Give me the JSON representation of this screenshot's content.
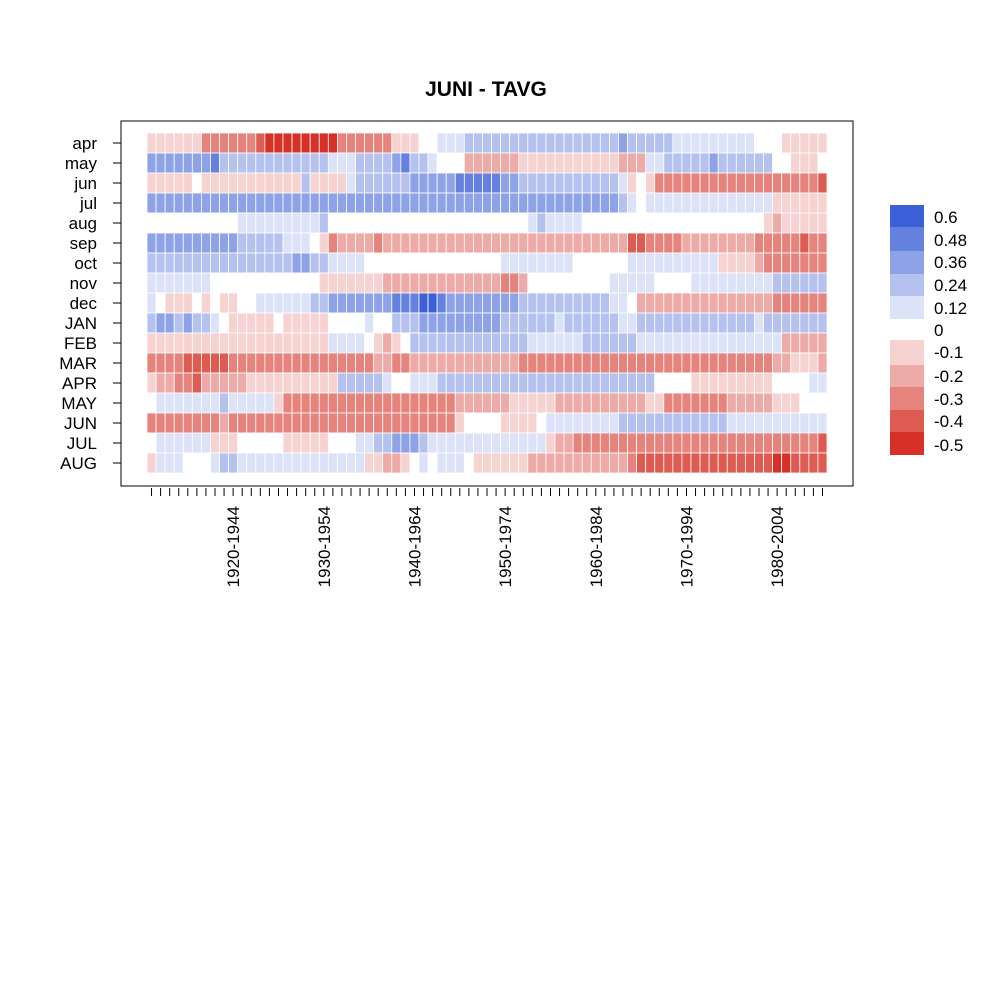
{
  "chart_data": {
    "type": "heatmap",
    "title": "JUNI - TAVG",
    "rows": [
      "apr",
      "may",
      "jun",
      "jul",
      "aug",
      "sep",
      "oct",
      "nov",
      "dec",
      "JAN",
      "FEB",
      "MAR",
      "APR",
      "MAY",
      "JUN",
      "JUL",
      "AUG"
    ],
    "x_tick_labels": [
      "1920-1944",
      "1930-1954",
      "1940-1964",
      "1950-1974",
      "1960-1984",
      "1970-1994",
      "1980-2004"
    ],
    "x_tick_label_column_index": [
      9,
      19,
      29,
      39,
      49,
      59,
      69
    ],
    "n_columns": 75,
    "color_scale": {
      "labels": [
        "0.6",
        "0.48",
        "0.36",
        "0.24",
        "0.12",
        "0",
        "-0.1",
        "-0.2",
        "-0.3",
        "-0.4",
        "-0.5"
      ],
      "colors": [
        "#3b5fd6",
        "#6581df",
        "#8ea2e7",
        "#b5c2f0",
        "#dce2f8",
        "#ffffff",
        "#f6d2d0",
        "#eeaaa6",
        "#e6837c",
        "#de5b52",
        "#d73027"
      ]
    },
    "values_description": "Each cell = correlation class (-0.5..0.6) for 25-year window ending at column index; values below in rows matching rows[] order.",
    "values": [
      [
        -0.1,
        -0.1,
        -0.1,
        -0.1,
        -0.1,
        -0.1,
        -0.3,
        -0.3,
        -0.3,
        -0.3,
        -0.3,
        -0.3,
        -0.4,
        -0.5,
        -0.5,
        -0.5,
        -0.5,
        -0.5,
        -0.5,
        -0.5,
        -0.5,
        -0.3,
        -0.3,
        -0.3,
        -0.3,
        -0.3,
        -0.3,
        -0.1,
        -0.1,
        -0.1,
        0,
        0,
        0.12,
        0.12,
        0.12,
        0.24,
        0.24,
        0.24,
        0.24,
        0.24,
        0.24,
        0.24,
        0.24,
        0.24,
        0.24,
        0.24,
        0.24,
        0.24,
        0.24,
        0.24,
        0.24,
        0.24,
        0.36,
        0.24,
        0.24,
        0.24,
        0.24,
        0.24,
        0.12,
        0.12,
        0.12,
        0.12,
        0.12,
        0.12,
        0.12,
        0.12,
        0.12,
        0,
        0,
        0,
        -0.1,
        -0.1,
        -0.1,
        -0.1,
        -0.1
      ],
      [
        0.36,
        0.36,
        0.36,
        0.36,
        0.36,
        0.36,
        0.36,
        0.48,
        0.24,
        0.24,
        0.24,
        0.24,
        0.24,
        0.24,
        0.24,
        0.24,
        0.24,
        0.24,
        0.24,
        0.24,
        0.12,
        0.12,
        0.12,
        0.24,
        0.24,
        0.24,
        0.24,
        0.36,
        0.48,
        0.24,
        0.24,
        0.12,
        0,
        0,
        0,
        -0.2,
        -0.2,
        -0.2,
        -0.2,
        -0.2,
        -0.2,
        -0.1,
        -0.1,
        -0.1,
        -0.1,
        -0.1,
        -0.1,
        -0.1,
        -0.1,
        -0.1,
        -0.1,
        -0.1,
        -0.2,
        -0.2,
        -0.2,
        0.12,
        0.12,
        0.24,
        0.24,
        0.24,
        0.24,
        0.24,
        0.36,
        0.24,
        0.24,
        0.24,
        0.24,
        0.24,
        0.24,
        0,
        0,
        -0.1,
        -0.1,
        -0.1,
        0
      ],
      [
        -0.1,
        -0.1,
        -0.1,
        -0.1,
        -0.1,
        0,
        -0.1,
        -0.1,
        -0.1,
        -0.1,
        -0.1,
        -0.1,
        -0.1,
        -0.1,
        -0.1,
        -0.1,
        -0.1,
        0.24,
        -0.1,
        -0.1,
        -0.1,
        -0.1,
        0.12,
        0.24,
        0.24,
        0.24,
        0.24,
        0.24,
        0.24,
        0.36,
        0.36,
        0.36,
        0.36,
        0.36,
        0.48,
        0.48,
        0.48,
        0.48,
        0.48,
        0.36,
        0.36,
        0.24,
        0.24,
        0.24,
        0.24,
        0.24,
        0.24,
        0.24,
        0.24,
        0.24,
        0.24,
        0.24,
        0.12,
        -0.1,
        0,
        -0.1,
        -0.3,
        -0.3,
        -0.3,
        -0.3,
        -0.3,
        -0.3,
        -0.3,
        -0.3,
        -0.3,
        -0.3,
        -0.3,
        -0.3,
        -0.3,
        -0.3,
        -0.3,
        -0.3,
        -0.3,
        -0.3,
        -0.4
      ],
      [
        0.36,
        0.36,
        0.36,
        0.36,
        0.36,
        0.36,
        0.36,
        0.36,
        0.36,
        0.36,
        0.36,
        0.36,
        0.36,
        0.36,
        0.36,
        0.36,
        0.36,
        0.36,
        0.36,
        0.36,
        0.36,
        0.36,
        0.36,
        0.36,
        0.36,
        0.36,
        0.36,
        0.36,
        0.36,
        0.36,
        0.36,
        0.36,
        0.36,
        0.36,
        0.36,
        0.36,
        0.36,
        0.36,
        0.36,
        0.36,
        0.36,
        0.36,
        0.36,
        0.36,
        0.36,
        0.36,
        0.36,
        0.36,
        0.36,
        0.36,
        0.36,
        0.36,
        0.24,
        0.12,
        0,
        0.12,
        0.12,
        0.12,
        0.12,
        0.12,
        0.12,
        0.12,
        0.12,
        0.12,
        0.12,
        0.12,
        0.12,
        0.12,
        0.12,
        -0.1,
        -0.1,
        -0.1,
        -0.1,
        -0.1,
        -0.1
      ],
      [
        0,
        0,
        0,
        0,
        0,
        0,
        0,
        0,
        0,
        0,
        0.12,
        0.12,
        0.12,
        0.12,
        0.12,
        0.12,
        0.12,
        0.12,
        0.12,
        0.24,
        0,
        0,
        0,
        0,
        0,
        0,
        0,
        0,
        0,
        0,
        0,
        0,
        0,
        0,
        0,
        0,
        0,
        0,
        0,
        0,
        0,
        0,
        0.12,
        0.24,
        0.12,
        0.12,
        0.12,
        0.12,
        0,
        0,
        0,
        0,
        0,
        0,
        0,
        0,
        0,
        0,
        0,
        0,
        0,
        0,
        0,
        0,
        0,
        0,
        0,
        0,
        -0.1,
        -0.2,
        -0.1,
        -0.1,
        -0.1,
        -0.1,
        -0.1
      ],
      [
        0.36,
        0.36,
        0.36,
        0.36,
        0.36,
        0.36,
        0.36,
        0.36,
        0.36,
        0.36,
        0.24,
        0.24,
        0.24,
        0.24,
        0.24,
        0.12,
        0.12,
        0.12,
        0,
        -0.1,
        -0.3,
        -0.2,
        -0.2,
        -0.2,
        -0.2,
        -0.3,
        -0.2,
        -0.2,
        -0.2,
        -0.2,
        -0.2,
        -0.2,
        -0.2,
        -0.2,
        -0.2,
        -0.2,
        -0.2,
        -0.2,
        -0.2,
        -0.2,
        -0.2,
        -0.2,
        -0.2,
        -0.2,
        -0.2,
        -0.2,
        -0.2,
        -0.2,
        -0.2,
        -0.2,
        -0.2,
        -0.2,
        -0.2,
        -0.4,
        -0.4,
        -0.3,
        -0.3,
        -0.3,
        -0.3,
        -0.2,
        -0.2,
        -0.2,
        -0.2,
        -0.2,
        -0.2,
        -0.2,
        -0.2,
        -0.3,
        -0.3,
        -0.3,
        -0.3,
        -0.3,
        -0.4,
        -0.3,
        -0.3
      ],
      [
        0.24,
        0.24,
        0.24,
        0.24,
        0.24,
        0.24,
        0.24,
        0.24,
        0.24,
        0.24,
        0.24,
        0.24,
        0.24,
        0.24,
        0.24,
        0.24,
        0.36,
        0.36,
        0.24,
        0.24,
        0.12,
        0.12,
        0.12,
        0.12,
        0,
        0,
        0,
        0,
        0,
        0,
        0,
        0,
        0,
        0,
        0,
        0,
        0,
        0,
        0,
        0.12,
        0.12,
        0.12,
        0.12,
        0.12,
        0.12,
        0.12,
        0.12,
        0,
        0,
        0,
        0,
        0,
        0,
        0.12,
        0.12,
        0.12,
        0.12,
        0.12,
        0.12,
        0.12,
        0.12,
        0.12,
        0.12,
        -0.1,
        -0.1,
        -0.1,
        -0.1,
        -0.2,
        -0.3,
        -0.3,
        -0.3,
        -0.3,
        -0.3,
        -0.3,
        -0.3
      ],
      [
        0.12,
        0.12,
        0.12,
        0.12,
        0.12,
        0.12,
        0.12,
        0,
        0,
        0,
        0,
        0,
        0,
        0,
        0,
        0,
        0,
        0,
        0,
        -0.1,
        -0.1,
        -0.1,
        -0.1,
        -0.1,
        -0.1,
        -0.1,
        -0.2,
        -0.2,
        -0.2,
        -0.2,
        -0.2,
        -0.2,
        -0.2,
        -0.2,
        -0.2,
        -0.2,
        -0.2,
        -0.2,
        -0.2,
        -0.3,
        -0.3,
        -0.2,
        0,
        0,
        0,
        0,
        0,
        0,
        0,
        0,
        0,
        0.12,
        0.12,
        0.12,
        0.12,
        0.12,
        0,
        0,
        0,
        0,
        0.12,
        0.12,
        0.12,
        0.12,
        0.12,
        0.12,
        0.12,
        0.12,
        0.12,
        0.24,
        0.24,
        0.24,
        0.24,
        0.24,
        0.24
      ],
      [
        0.12,
        0,
        -0.1,
        -0.1,
        -0.1,
        0,
        -0.1,
        0,
        -0.1,
        -0.1,
        0,
        0,
        0.12,
        0.12,
        0.12,
        0.12,
        0.12,
        0.12,
        0.24,
        0.24,
        0.36,
        0.36,
        0.36,
        0.36,
        0.36,
        0.36,
        0.36,
        0.48,
        0.48,
        0.48,
        0.6,
        0.6,
        0.48,
        0.36,
        0.36,
        0.36,
        0.36,
        0.36,
        0.36,
        0.36,
        0.36,
        0.24,
        0.24,
        0.24,
        0.24,
        0.24,
        0.24,
        0.24,
        0.24,
        0.24,
        0.24,
        0.12,
        0.12,
        0,
        -0.2,
        -0.2,
        -0.2,
        -0.2,
        -0.2,
        -0.2,
        -0.2,
        -0.2,
        -0.2,
        -0.2,
        -0.2,
        -0.2,
        -0.2,
        -0.2,
        -0.2,
        -0.3,
        -0.3,
        -0.3,
        -0.3,
        -0.3,
        -0.3
      ],
      [
        0.24,
        0.36,
        0.36,
        0.24,
        0.36,
        0.24,
        0.24,
        0.12,
        0,
        -0.1,
        -0.1,
        -0.1,
        -0.1,
        -0.1,
        0,
        -0.1,
        -0.1,
        -0.1,
        -0.1,
        -0.1,
        0,
        0,
        0,
        0,
        0.12,
        0,
        0,
        0.24,
        0.24,
        0.24,
        0.36,
        0.36,
        0.36,
        0.36,
        0.36,
        0.36,
        0.36,
        0.36,
        0.36,
        0.24,
        0.24,
        0.24,
        0.24,
        0.24,
        0.24,
        0.12,
        0.24,
        0.24,
        0.24,
        0.24,
        0.24,
        0.24,
        0.12,
        0.12,
        0.24,
        0.24,
        0.24,
        0.24,
        0.24,
        0.24,
        0.24,
        0.24,
        0.24,
        0.24,
        0.24,
        0.24,
        0.24,
        0.12,
        0.24,
        0.24,
        0.24,
        0.24,
        0.24,
        0.24,
        0.24
      ],
      [
        -0.1,
        -0.1,
        -0.1,
        -0.1,
        -0.1,
        -0.1,
        -0.1,
        -0.1,
        -0.1,
        -0.1,
        -0.1,
        -0.1,
        -0.1,
        -0.1,
        -0.1,
        -0.1,
        -0.1,
        -0.1,
        -0.1,
        -0.1,
        0.12,
        0.12,
        0.12,
        0.12,
        0,
        -0.1,
        -0.2,
        -0.1,
        0,
        0.24,
        0.24,
        0.24,
        0.24,
        0.24,
        0.24,
        0.24,
        0.24,
        0.24,
        0.24,
        0.24,
        0.24,
        0.24,
        0.12,
        0.12,
        0.12,
        0.12,
        0.12,
        0.12,
        0.24,
        0.24,
        0.24,
        0.24,
        0.24,
        0.24,
        0.12,
        0.12,
        0.12,
        0.12,
        0.12,
        0.12,
        0.12,
        0.12,
        0.12,
        0.12,
        0.12,
        0.12,
        0.12,
        0.12,
        0.12,
        0.12,
        -0.2,
        -0.2,
        -0.2,
        -0.2,
        -0.2
      ],
      [
        -0.3,
        -0.3,
        -0.3,
        -0.3,
        -0.4,
        -0.4,
        -0.4,
        -0.4,
        -0.4,
        -0.3,
        -0.3,
        -0.3,
        -0.3,
        -0.3,
        -0.3,
        -0.3,
        -0.3,
        -0.3,
        -0.3,
        -0.3,
        -0.3,
        -0.3,
        -0.3,
        -0.3,
        -0.3,
        -0.2,
        -0.2,
        -0.3,
        -0.3,
        -0.2,
        -0.2,
        -0.2,
        -0.2,
        -0.2,
        -0.2,
        -0.2,
        -0.2,
        -0.2,
        -0.2,
        -0.2,
        -0.2,
        -0.3,
        -0.3,
        -0.3,
        -0.3,
        -0.3,
        -0.3,
        -0.3,
        -0.3,
        -0.3,
        -0.3,
        -0.3,
        -0.3,
        -0.3,
        -0.3,
        -0.3,
        -0.3,
        -0.3,
        -0.3,
        -0.3,
        -0.3,
        -0.3,
        -0.3,
        -0.3,
        -0.3,
        -0.3,
        -0.3,
        -0.3,
        -0.3,
        -0.2,
        -0.2,
        -0.1,
        -0.1,
        -0.1,
        -0.2
      ],
      [
        -0.1,
        -0.2,
        -0.2,
        -0.3,
        -0.3,
        -0.4,
        -0.2,
        -0.2,
        -0.2,
        -0.2,
        -0.2,
        -0.1,
        -0.1,
        -0.1,
        -0.1,
        -0.1,
        -0.1,
        -0.1,
        -0.1,
        -0.1,
        -0.1,
        0.24,
        0.24,
        0.24,
        0.24,
        0.24,
        0.12,
        0,
        0,
        0.12,
        0.12,
        0.12,
        0.24,
        0.24,
        0.24,
        0.24,
        0.24,
        0.24,
        0.24,
        0.24,
        0.24,
        0.24,
        0.24,
        0.24,
        0.24,
        0.24,
        0.24,
        0.24,
        0.24,
        0.24,
        0.24,
        0.24,
        0.24,
        0.24,
        0.24,
        0.24,
        0,
        0,
        0,
        0,
        -0.1,
        -0.1,
        -0.1,
        -0.1,
        -0.1,
        -0.1,
        -0.1,
        -0.1,
        -0.1,
        0,
        0,
        0,
        0,
        0.12,
        0.12
      ],
      [
        0,
        0.12,
        0.12,
        0.12,
        0.12,
        0.12,
        0.12,
        0.12,
        0.24,
        0.12,
        0.12,
        0.12,
        0.12,
        0.12,
        -0.1,
        -0.3,
        -0.3,
        -0.3,
        -0.3,
        -0.3,
        -0.3,
        -0.3,
        -0.3,
        -0.3,
        -0.3,
        -0.3,
        -0.3,
        -0.3,
        -0.3,
        -0.3,
        -0.3,
        -0.3,
        -0.3,
        -0.3,
        -0.2,
        -0.2,
        -0.2,
        -0.2,
        -0.2,
        -0.2,
        -0.1,
        -0.1,
        -0.1,
        -0.1,
        -0.1,
        -0.2,
        -0.2,
        -0.2,
        -0.2,
        -0.2,
        -0.2,
        -0.2,
        -0.2,
        -0.2,
        -0.2,
        -0.1,
        -0.1,
        -0.3,
        -0.3,
        -0.3,
        -0.3,
        -0.3,
        -0.3,
        -0.3,
        -0.2,
        -0.2,
        -0.2,
        -0.2,
        -0.2,
        -0.1,
        -0.1,
        -0.1,
        0,
        0,
        0
      ],
      [
        -0.3,
        -0.3,
        -0.3,
        -0.3,
        -0.3,
        -0.3,
        -0.3,
        -0.3,
        -0.2,
        -0.3,
        -0.3,
        -0.3,
        -0.3,
        -0.3,
        -0.3,
        -0.3,
        -0.3,
        -0.3,
        -0.3,
        -0.3,
        -0.3,
        -0.3,
        -0.3,
        -0.3,
        -0.3,
        -0.3,
        -0.3,
        -0.3,
        -0.3,
        -0.3,
        -0.3,
        -0.3,
        -0.3,
        -0.3,
        -0.1,
        0,
        0,
        0,
        0,
        -0.1,
        -0.1,
        -0.1,
        -0.1,
        0,
        0.12,
        0.12,
        0.12,
        0.12,
        0.12,
        0.12,
        0.12,
        0.12,
        0.24,
        0.24,
        0.24,
        0.24,
        0.24,
        0.24,
        0.24,
        0.24,
        0.24,
        0.24,
        0.24,
        0.24,
        0.12,
        0.12,
        0.12,
        0.12,
        0.12,
        0.12,
        0.12,
        0.12,
        0.12,
        0.12,
        0.12
      ],
      [
        0,
        0.12,
        0.12,
        0.12,
        0.12,
        0.12,
        0.12,
        -0.1,
        -0.1,
        -0.1,
        0,
        0,
        0,
        0,
        0,
        -0.1,
        -0.1,
        -0.1,
        -0.1,
        -0.1,
        0,
        0,
        0,
        0.12,
        0.12,
        0.24,
        0.24,
        0.36,
        0.36,
        0.36,
        0.24,
        0.12,
        0.12,
        0.12,
        0.12,
        0.12,
        0.12,
        0.12,
        0.12,
        0.12,
        0.12,
        0.12,
        0.12,
        0.12,
        -0.1,
        -0.2,
        -0.2,
        -0.3,
        -0.3,
        -0.3,
        -0.3,
        -0.3,
        -0.3,
        -0.3,
        -0.3,
        -0.3,
        -0.3,
        -0.3,
        -0.3,
        -0.3,
        -0.3,
        -0.3,
        -0.3,
        -0.3,
        -0.3,
        -0.3,
        -0.3,
        -0.3,
        -0.3,
        -0.3,
        -0.3,
        -0.3,
        -0.3,
        -0.3,
        -0.4
      ],
      [
        -0.1,
        0.12,
        0.12,
        0.12,
        0,
        0,
        0,
        0.12,
        0.24,
        0.24,
        0.12,
        0.12,
        0.12,
        0.12,
        0.12,
        0.12,
        0.12,
        0.12,
        0.12,
        0.12,
        0.12,
        0.12,
        0.12,
        0.12,
        -0.1,
        -0.1,
        -0.2,
        -0.2,
        -0.1,
        0,
        0.12,
        0,
        0.12,
        0.12,
        0.12,
        0,
        -0.1,
        -0.1,
        -0.1,
        -0.1,
        -0.1,
        -0.1,
        -0.2,
        -0.2,
        -0.2,
        -0.2,
        -0.2,
        -0.2,
        -0.2,
        -0.2,
        -0.2,
        -0.2,
        -0.2,
        -0.3,
        -0.4,
        -0.4,
        -0.4,
        -0.4,
        -0.4,
        -0.4,
        -0.4,
        -0.4,
        -0.4,
        -0.4,
        -0.4,
        -0.4,
        -0.4,
        -0.4,
        -0.4,
        -0.5,
        -0.5,
        -0.4,
        -0.4,
        -0.4,
        -0.4
      ]
    ]
  }
}
